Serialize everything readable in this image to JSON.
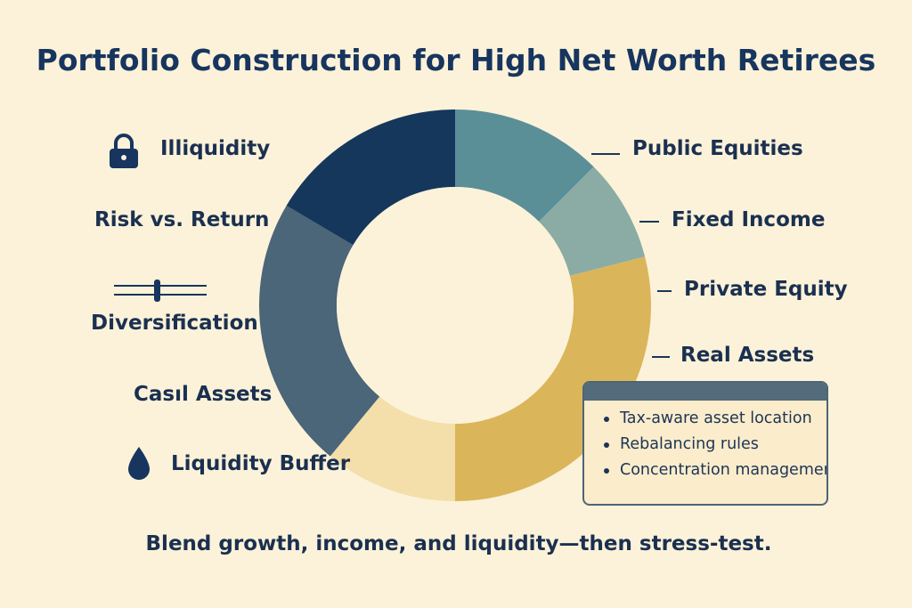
{
  "title": "Portfolio Construction for High Net Worth Retirees",
  "left_labels": {
    "illiquidity": "Illiquidity",
    "risk_return": "Risk vs. Return",
    "diversification": "Diversification",
    "cash_assets": "Casıl Assets",
    "liquidity_buffer": "Liquidity Buffer"
  },
  "right_labels": {
    "public_equities": "Public Equities",
    "fixed_income": "Fixed Income",
    "private_equity": "Private Equity",
    "real_assets": "Real Assets"
  },
  "donut_segments": [
    {
      "key": "public_equities",
      "share": 0.125,
      "color": "#5a8f97"
    },
    {
      "key": "fixed_income",
      "share": 0.085,
      "color": "#8aaca4"
    },
    {
      "key": "real_assets",
      "share": 0.29,
      "color": "#dbb55a"
    },
    {
      "key": "liquidity_buffer",
      "share": 0.11,
      "color": "#f4dfaa"
    },
    {
      "key": "cash_assets",
      "share": 0.225,
      "color": "#4b6579"
    },
    {
      "key": "illiquidity",
      "share": 0.165,
      "color": "#15375c"
    }
  ],
  "notes": {
    "items": [
      "Tax-aware asset location",
      "Rebalancing rules",
      "Concentration management"
    ]
  },
  "caption": "Blend growth, income, and liquidity—then stress-test.",
  "colors": {
    "background": "#fbf2d9",
    "navy": "#17355e"
  },
  "icons": {
    "illiquidity": "lock-icon",
    "diversification": "sliders-icon",
    "liquidity_buffer": "droplet-icon"
  }
}
